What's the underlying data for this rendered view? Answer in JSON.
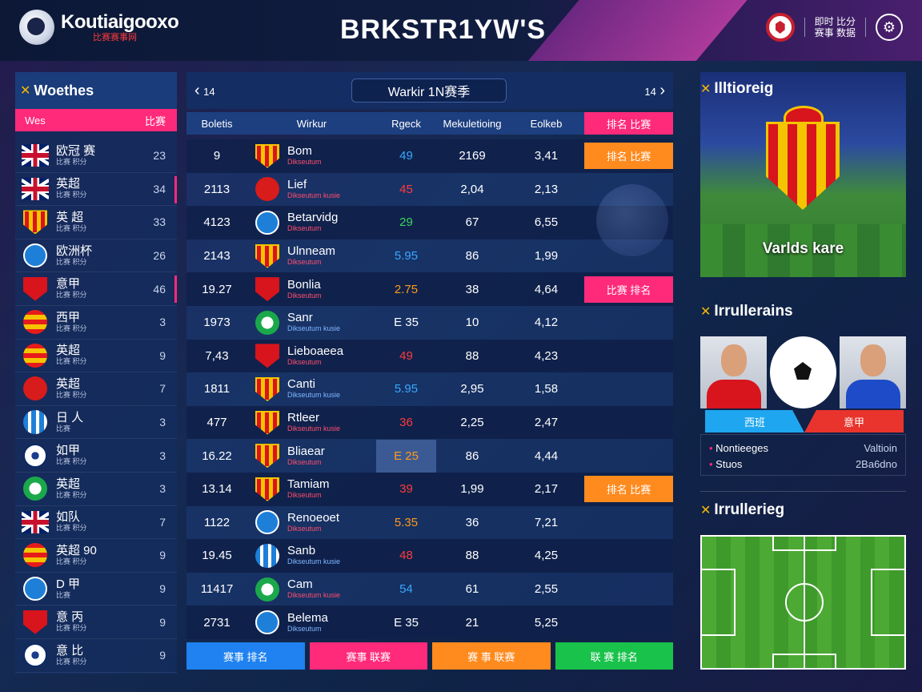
{
  "header": {
    "logo_text": "Koutiaigooxo",
    "logo_sub": "比赛赛事网",
    "app_title": "BRKSTR1YW'S",
    "user_line1": "即时 比分",
    "user_line2": "赛事 数据"
  },
  "sidebar": {
    "title": "Woethes",
    "tab_left": "Wes",
    "tab_right": "比赛",
    "items": [
      {
        "name": "欧冠 赛",
        "sub": "比赛 积分",
        "num": "23",
        "icon": "uk-flag-icon",
        "crest": "flag-uk",
        "accent": false
      },
      {
        "name": "英超",
        "sub": "比赛 积分",
        "num": "34",
        "icon": "uk-flag-icon",
        "crest": "flag-uk",
        "accent": true
      },
      {
        "name": "英 超",
        "sub": "比赛 积分",
        "num": "33",
        "icon": "striped-shield-icon",
        "crest": "crest-shield",
        "accent": false
      },
      {
        "name": "欧洲杯",
        "sub": "比赛 积分",
        "num": "26",
        "icon": "blue-club-icon",
        "crest": "crest-circle-blue",
        "accent": false
      },
      {
        "name": "意甲",
        "sub": "比赛 积分",
        "num": "46",
        "icon": "red-shield-icon",
        "crest": "crest-shield-red",
        "accent": true
      },
      {
        "name": "西甲",
        "sub": "比赛 积分",
        "num": "3",
        "icon": "orange-club-icon",
        "crest": "crest-circle-orange",
        "accent": false
      },
      {
        "name": "英超",
        "sub": "比赛 积分",
        "num": "9",
        "icon": "orange-club-icon",
        "crest": "crest-circle-orange",
        "accent": false
      },
      {
        "name": "英超",
        "sub": "比赛 积分",
        "num": "7",
        "icon": "red-club-icon",
        "crest": "crest-circle-red",
        "accent": false
      },
      {
        "name": "日 人",
        "sub": "比赛",
        "num": "3",
        "icon": "striped-club-icon",
        "crest": "crest-stripe-blue",
        "accent": false
      },
      {
        "name": "如甲",
        "sub": "比赛 积分",
        "num": "3",
        "icon": "ball-club-icon",
        "crest": "crest-ball",
        "accent": false
      },
      {
        "name": "英超",
        "sub": "比赛 积分",
        "num": "3",
        "icon": "green-club-icon",
        "crest": "crest-green",
        "accent": false
      },
      {
        "name": "如队",
        "sub": "比赛 积分",
        "num": "7",
        "icon": "uk-flag-icon",
        "crest": "flag-uk",
        "accent": false
      },
      {
        "name": "英超 90",
        "sub": "比赛 积分",
        "num": "9",
        "icon": "orange-club-icon",
        "crest": "crest-circle-orange",
        "accent": false
      },
      {
        "name": "D 甲",
        "sub": "比赛",
        "num": "9",
        "icon": "blue-club-icon",
        "crest": "crest-circle-blue",
        "accent": false
      },
      {
        "name": "意 丙",
        "sub": "比赛 积分",
        "num": "9",
        "icon": "red-shield-icon",
        "crest": "crest-shield-red",
        "accent": false
      },
      {
        "name": "意 比",
        "sub": "比赛 积分",
        "num": "9",
        "icon": "ball-club-icon",
        "crest": "crest-ball",
        "accent": false
      }
    ]
  },
  "table": {
    "prev_label": "14",
    "next_label": "14",
    "week_label": "Warkir 1N赛季",
    "columns": [
      "Boletis",
      "Wirkur",
      "Rgeck",
      "Mekuletioing",
      "Eolkeb",
      "排名 比赛"
    ],
    "rows": [
      {
        "rank": "9",
        "crest": "crest-shield",
        "club": "Bom",
        "sub": "Dikseutum",
        "subblue": false,
        "v1": "49",
        "v1c": "blue",
        "v2": "2169",
        "v3": "3,41",
        "tag": "排名 比赛",
        "tagc": "tag-orange",
        "hl": false
      },
      {
        "rank": "2113",
        "crest": "crest-circle-red",
        "club": "Lief",
        "sub": "Dikseutum kusie",
        "subblue": false,
        "v1": "45",
        "v1c": "red",
        "v2": "2,04",
        "v3": "2,13",
        "tag": "",
        "tagc": "",
        "hl": false
      },
      {
        "rank": "4123",
        "crest": "crest-circle-blue",
        "club": "Betarvidg",
        "sub": "Dikseutum",
        "subblue": false,
        "v1": "29",
        "v1c": "green",
        "v2": "67",
        "v3": "6,55",
        "tag": "",
        "tagc": "",
        "hl": false
      },
      {
        "rank": "2143",
        "crest": "crest-shield",
        "club": "Ulnneam",
        "sub": "Dikseutum",
        "subblue": false,
        "v1": "5.95",
        "v1c": "blue",
        "v2": "86",
        "v3": "1,99",
        "tag": "",
        "tagc": "",
        "hl": false
      },
      {
        "rank": "19.27",
        "crest": "crest-shield-red",
        "club": "Bonlia",
        "sub": "Dikseutum",
        "subblue": false,
        "v1": "2.75",
        "v1c": "orange",
        "v2": "38",
        "v3": "4,64",
        "tag": "比赛 排名",
        "tagc": "tag-pink",
        "hl": false
      },
      {
        "rank": "1973",
        "crest": "crest-green",
        "club": "Sanr",
        "sub": "Dikseutum kusie",
        "subblue": true,
        "v1": "E 35",
        "v1c": "",
        "v2": "10",
        "v3": "4,12",
        "tag": "",
        "tagc": "",
        "hl": false
      },
      {
        "rank": "7,43",
        "crest": "crest-shield-red",
        "club": "Lieboaeea",
        "sub": "Dikseutum",
        "subblue": false,
        "v1": "49",
        "v1c": "red",
        "v2": "88",
        "v3": "4,23",
        "tag": "",
        "tagc": "",
        "hl": false
      },
      {
        "rank": "1811",
        "crest": "crest-shield",
        "club": "Canti",
        "sub": "Dikseutum kusie",
        "subblue": true,
        "v1": "5.95",
        "v1c": "blue",
        "v2": "2,95",
        "v3": "1,58",
        "tag": "",
        "tagc": "",
        "hl": false
      },
      {
        "rank": "477",
        "crest": "crest-shield",
        "club": "Rtleer",
        "sub": "Dikseutum kusie",
        "subblue": false,
        "v1": "36",
        "v1c": "red",
        "v2": "2,25",
        "v3": "2,47",
        "tag": "",
        "tagc": "",
        "hl": false
      },
      {
        "rank": "16.22",
        "crest": "crest-shield",
        "club": "Bliaear",
        "sub": "Dikseutum",
        "subblue": false,
        "v1": "E 25",
        "v1c": "orange",
        "v2": "86",
        "v3": "4,44",
        "tag": "",
        "tagc": "",
        "hl": true
      },
      {
        "rank": "13.14",
        "crest": "crest-shield",
        "club": "Tamiam",
        "sub": "Dikseutum",
        "subblue": false,
        "v1": "39",
        "v1c": "red",
        "v2": "1,99",
        "v3": "2,17",
        "tag": "排名 比赛",
        "tagc": "tag-orange",
        "hl": false
      },
      {
        "rank": "1122",
        "crest": "crest-circle-blue",
        "club": "Renoeoet",
        "sub": "Dikseutum",
        "subblue": false,
        "v1": "5.35",
        "v1c": "orange",
        "v2": "36",
        "v3": "7,21",
        "tag": "",
        "tagc": "",
        "hl": false
      },
      {
        "rank": "19.45",
        "crest": "crest-stripe-blue",
        "club": "Sanb",
        "sub": "Dikseutum kusie",
        "subblue": true,
        "v1": "48",
        "v1c": "red",
        "v2": "88",
        "v3": "4,25",
        "tag": "",
        "tagc": "",
        "hl": false
      },
      {
        "rank": "11417",
        "crest": "crest-green",
        "club": "Cam",
        "sub": "Dikseutum kusie",
        "subblue": false,
        "v1": "54",
        "v1c": "blue",
        "v2": "61",
        "v3": "2,55",
        "tag": "",
        "tagc": "",
        "hl": false
      },
      {
        "rank": "2731",
        "crest": "crest-circle-blue",
        "club": "Belema",
        "sub": "Dikseutum",
        "subblue": true,
        "v1": "E 35",
        "v1c": "",
        "v2": "21",
        "v3": "5,25",
        "tag": "",
        "tagc": "",
        "hl": false
      }
    ],
    "buttons": [
      "赛事 排名",
      "赛事 联赛",
      "赛 事 联赛",
      "联 赛 排名"
    ]
  },
  "right": {
    "feature_title": "Illtioreig",
    "feature_label": "Varlds kare",
    "players_title": "Irrullerains",
    "player_tab_left": "西班",
    "player_tab_right": "意甲",
    "stats": [
      {
        "k": "Nontieeges",
        "v": "Valtioin"
      },
      {
        "k": "Stuos",
        "v": "2Ba6dno"
      }
    ],
    "field_title": "Irrullerieg"
  },
  "colors": {
    "accent_pink": "#ff2a7a",
    "accent_orange": "#ff8a1e",
    "accent_blue": "#1f82f0",
    "accent_green": "#19c24a",
    "header_bg": "#0c1836"
  }
}
